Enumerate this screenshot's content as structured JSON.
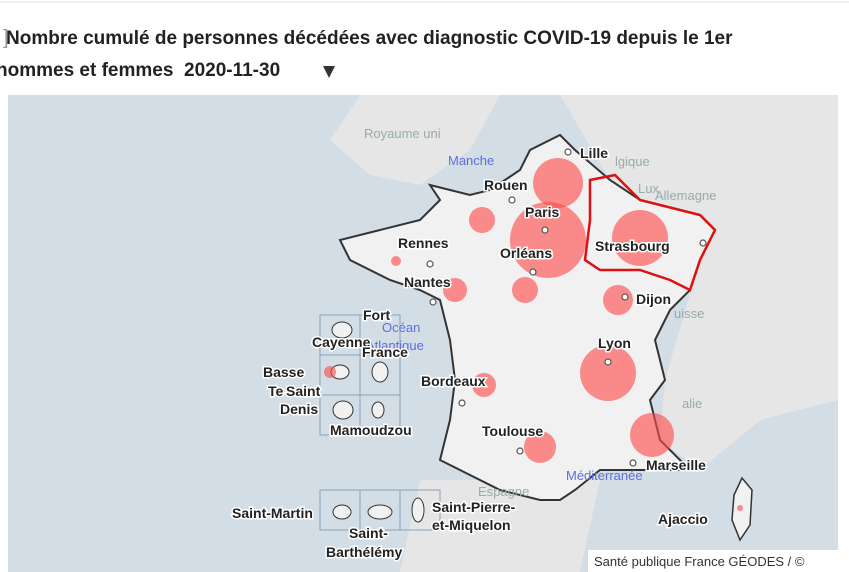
{
  "header": {
    "title": "Nombre cumulé de personnes décédées avec diagnostic COVID-19 depuis le 1er",
    "filter": "hommes et femmes",
    "date": "2020-11-30"
  },
  "map": {
    "labels": [
      "Royaume uni",
      "Manche",
      "Lille",
      "lgique",
      "Lux",
      "Allemagne",
      "Rouen",
      "Paris",
      "Rennes",
      "Orléans",
      "Strasbourg",
      "Nantes",
      "Dijon",
      "uisse",
      "Océan",
      "Atlantique",
      "Fort",
      "Cayenne",
      "France",
      "Lyon",
      "Basse",
      "Te",
      "Saint",
      "Denis",
      "Bordeaux",
      "alie",
      "Mamoudzou",
      "Toulouse",
      "Marseille",
      "Méditerranée",
      "Espagne",
      "Ajaccio",
      "Saint-Martin",
      "Saint-",
      "Barthélémy",
      "Saint-Pierre-",
      "et-Miquelon"
    ],
    "attribution": "Santé publique France GÉODES / ©"
  }
}
